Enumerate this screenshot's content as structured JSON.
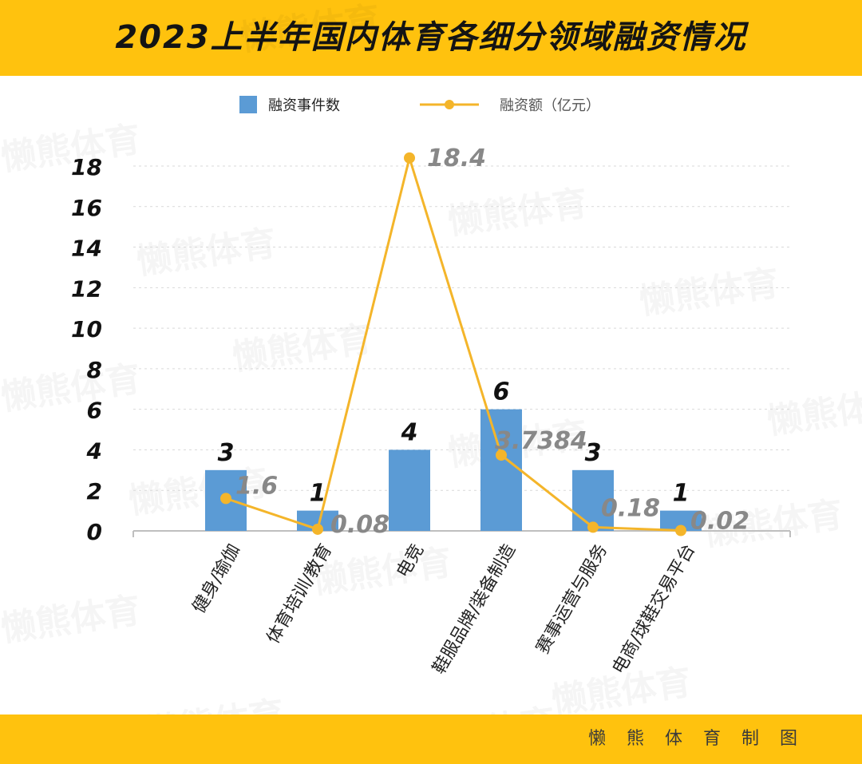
{
  "header": {
    "title": "2023上半年国内体育各细分领域融资情况"
  },
  "footer": {
    "credit": "懒熊体育制图"
  },
  "watermark": {
    "text": "懒熊体育"
  },
  "colors": {
    "accent": "#FFC20E",
    "bar": "#5B9BD5",
    "line": "#F4B52A",
    "grid": "#d9d9d9",
    "axis_text": "#111111",
    "line_label": "#888888"
  },
  "chart_data": {
    "type": "bar",
    "categories": [
      "健身/瑜伽",
      "体育培训/教育",
      "电竞",
      "鞋服品牌/装备制造",
      "赛事运营与服务",
      "电商/球鞋交易平台"
    ],
    "series": [
      {
        "name": "融资事件数",
        "type": "bar",
        "values": [
          3,
          1,
          4,
          6,
          3,
          1
        ],
        "labels": [
          "3",
          "1",
          "4",
          "6",
          "3",
          "1"
        ]
      },
      {
        "name": "融资额（亿元）",
        "type": "line",
        "values": [
          1.6,
          0.08,
          18.4,
          3.7384,
          0.18,
          0.02
        ],
        "labels": [
          "1.6",
          "0.08",
          "18.4",
          "3.7384",
          "0.18",
          "0.02"
        ]
      }
    ],
    "ylim": [
      0,
      18
    ],
    "yticks": [
      "0",
      "2",
      "4",
      "6",
      "8",
      "10",
      "12",
      "14",
      "16",
      "18"
    ],
    "grid": true,
    "legend": "top-center"
  }
}
